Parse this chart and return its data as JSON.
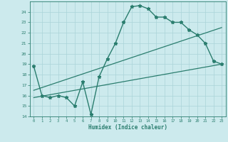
{
  "title": "",
  "xlabel": "Humidex (Indice chaleur)",
  "ylabel": "",
  "background_color": "#cceaed",
  "grid_color": "#aad4d8",
  "line_color": "#2a7d6e",
  "xlim": [
    -0.5,
    23.5
  ],
  "ylim": [
    14,
    25
  ],
  "yticks": [
    14,
    15,
    16,
    17,
    18,
    19,
    20,
    21,
    22,
    23,
    24
  ],
  "xticks": [
    0,
    1,
    2,
    3,
    4,
    5,
    6,
    7,
    8,
    9,
    10,
    11,
    12,
    13,
    14,
    15,
    16,
    17,
    18,
    19,
    20,
    21,
    22,
    23
  ],
  "series": [
    {
      "x": [
        0,
        1,
        2,
        3,
        4,
        5,
        6,
        7,
        8,
        9,
        10,
        11,
        12,
        13,
        14,
        15,
        16,
        17,
        18,
        19,
        20,
        21,
        22,
        23
      ],
      "y": [
        18.8,
        16.0,
        15.8,
        16.0,
        15.8,
        15.0,
        17.3,
        14.2,
        17.8,
        19.5,
        21.0,
        23.0,
        24.5,
        24.6,
        24.3,
        23.5,
        23.5,
        23.0,
        23.0,
        22.3,
        21.8,
        21.0,
        19.3,
        19.0
      ],
      "marker": "*",
      "markersize": 3.5,
      "linewidth": 1.0
    },
    {
      "x": [
        0,
        23
      ],
      "y": [
        15.8,
        19.0
      ],
      "marker": null,
      "markersize": 0,
      "linewidth": 0.9
    },
    {
      "x": [
        0,
        23
      ],
      "y": [
        16.5,
        22.5
      ],
      "marker": null,
      "markersize": 0,
      "linewidth": 0.9
    }
  ]
}
